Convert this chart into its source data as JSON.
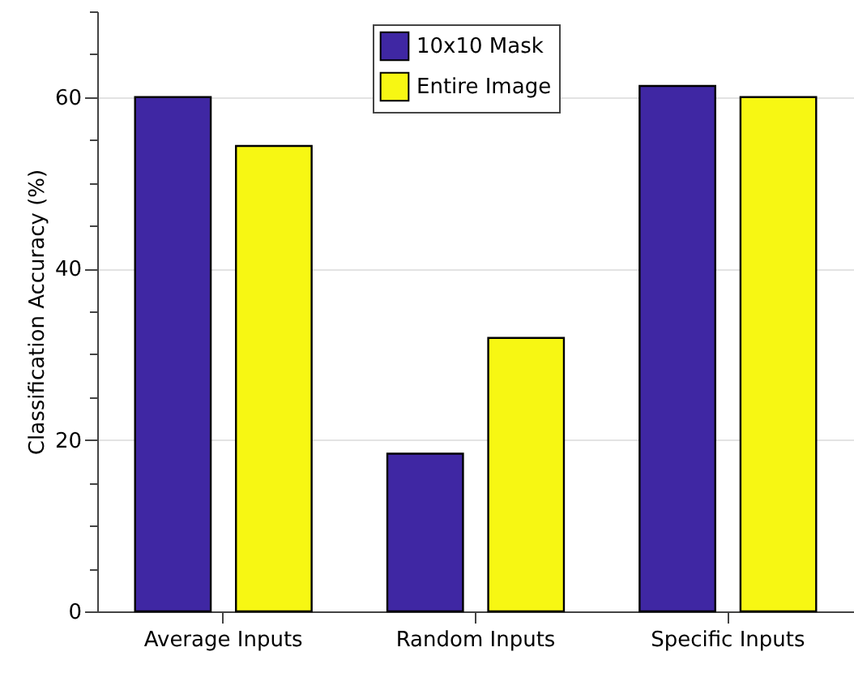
{
  "chart_data": {
    "type": "bar",
    "ylabel": "Classification Accuracy (%)",
    "categories": [
      "Average Inputs",
      "Random Inputs",
      "Specific Inputs"
    ],
    "series": [
      {
        "name": "10x10 Mask",
        "color": "#3f27a3",
        "values": [
          60.0,
          18.4,
          61.3
        ]
      },
      {
        "name": "Entire Image",
        "color": "#f7f713",
        "values": [
          54.3,
          31.9,
          60.0
        ]
      }
    ],
    "ylim": [
      0,
      70
    ],
    "yticks": [
      0,
      {
        "value": 5,
        "label": null
      },
      {
        "value": 10,
        "label": null
      },
      {
        "value": 15,
        "label": null
      },
      20,
      {
        "value": 25,
        "label": null
      },
      {
        "value": 30,
        "label": null
      },
      {
        "value": 35,
        "label": null
      },
      40,
      {
        "value": 45,
        "label": null
      },
      {
        "value": 50,
        "label": null
      },
      {
        "value": 55,
        "label": null
      },
      60,
      {
        "value": 65,
        "label": null
      },
      {
        "value": 70,
        "label": null
      }
    ],
    "grid": "y",
    "legend": "top"
  }
}
